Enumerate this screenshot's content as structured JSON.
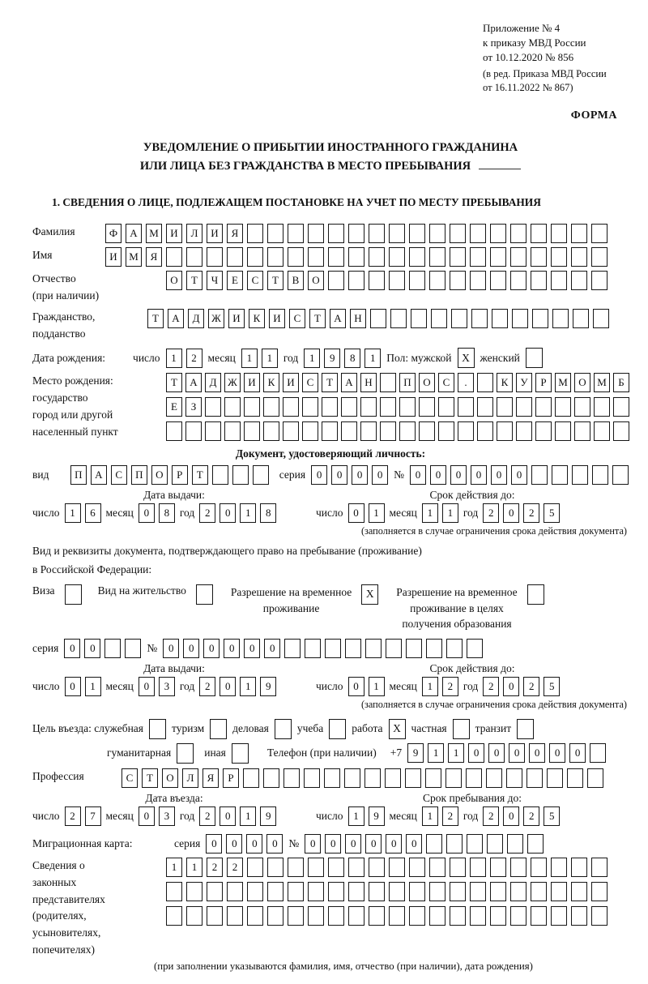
{
  "header": {
    "annex": [
      "Приложение № 4",
      "к приказу МВД России",
      "от 10.12.2020 № 856"
    ],
    "note": [
      "(в ред. Приказа МВД России",
      "от 16.11.2022 № 867)"
    ],
    "form_label": "ФОРМА"
  },
  "title": {
    "line1": "УВЕДОМЛЕНИЕ О ПРИБЫТИИ ИНОСТРАННОГО ГРАЖДАНИНА",
    "line2": "ИЛИ ЛИЦА БЕЗ ГРАЖДАНСТВА В МЕСТО ПРЕБЫВАНИЯ"
  },
  "section1_heading": "1. СВЕДЕНИЯ О ЛИЦЕ, ПОДЛЕЖАЩЕМ ПОСТАНОВКЕ НА УЧЕТ ПО МЕСТУ ПРЕБЫВАНИЯ",
  "labels": {
    "surname": "Фамилия",
    "name": "Имя",
    "patronymic": "Отчество",
    "patronymic2": "(при наличии)",
    "citizenship1": "Гражданство,",
    "citizenship2": "подданство",
    "birth_date": "Дата рождения:",
    "day": "число",
    "month": "месяц",
    "year": "год",
    "sex_male": "Пол: мужской",
    "sex_female": "женский",
    "birthplace1": "Место рождения:",
    "birthplace2": "государство",
    "birthplace3": "город или другой",
    "birthplace4": "населенный пункт",
    "doc_header": "Документ, удостоверяющий личность:",
    "kind": "вид",
    "seria": "серия",
    "number": "№",
    "issue_date": "Дата выдачи:",
    "validity": "Срок действия до:",
    "validity_note": "(заполняется в случае ограничения срока действия документа)",
    "permit_line1": "Вид и реквизиты документа, подтверждающего право на пребывание (проживание)",
    "permit_line2": "в Российской Федерации:",
    "visa": "Виза",
    "residence_permit": "Вид на жительство",
    "rvp_l1": "Разрешение на временное",
    "rvp_l2": "проживание",
    "rvp_edu_l1": "Разрешение на временное",
    "rvp_edu_l2": "проживание в целях",
    "rvp_edu_l3": "получения образования",
    "purpose": "Цель въезда: служебная",
    "tourism": "туризм",
    "business": "деловая",
    "study": "учеба",
    "work": "работа",
    "private": "частная",
    "transit": "транзит",
    "humanitarian": "гуманитарная",
    "other": "иная",
    "phone": "Телефон (при наличии)",
    "plus7": "+7",
    "profession": "Профессия",
    "entry_date": "Дата въезда:",
    "stay_until": "Срок пребывания до:",
    "migcard": "Миграционная карта:",
    "legal_l1": "Сведения о",
    "legal_l2": "законных",
    "legal_l3": "представителях",
    "legal_l4": "(родителях,",
    "legal_l5": "усыновителях,",
    "legal_l6": "попечителях)",
    "legal_note": "(при заполнении указываются фамилия, имя, отчество (при наличии), дата рождения)"
  },
  "fields": {
    "surname": {
      "text": "ФАМИЛИЯ",
      "count": 25
    },
    "name": {
      "text": "ИМЯ",
      "count": 25
    },
    "patronymic": {
      "text": "ОТЧЕСТВО",
      "count": 22
    },
    "citizenship": {
      "text": "ТАДЖИКИСТАН",
      "count": 23
    },
    "birthplace_row1": {
      "text": "ТАДЖИКИСТАН ПОС. КУРМОМБ",
      "count": 24
    },
    "birthplace_row2": {
      "text": "ЕЗ",
      "count": 24
    },
    "birthplace_row3": {
      "text": "",
      "count": 24
    },
    "birth_day": {
      "text": "12",
      "count": 2
    },
    "birth_month": {
      "text": "11",
      "count": 2
    },
    "birth_year": {
      "text": "1981",
      "count": 4
    },
    "doc_kind": {
      "text": "ПАСПОРТ",
      "count": 10
    },
    "doc_seria": {
      "text": "0000",
      "count": 4
    },
    "doc_number": {
      "text": "000000",
      "count": 11
    },
    "doc_issue": {
      "day": {
        "text": "16",
        "count": 2
      },
      "month": {
        "text": "08",
        "count": 2
      },
      "year": {
        "text": "2018",
        "count": 4
      }
    },
    "doc_expiry": {
      "day": {
        "text": "01",
        "count": 2
      },
      "month": {
        "text": "11",
        "count": 2
      },
      "year": {
        "text": "2025",
        "count": 4
      }
    },
    "permit_seria": {
      "text": "00",
      "count": 4
    },
    "permit_number": {
      "text": "000000",
      "count": 16
    },
    "permit_issue": {
      "day": {
        "text": "01",
        "count": 2
      },
      "month": {
        "text": "03",
        "count": 2
      },
      "year": {
        "text": "2019",
        "count": 4
      }
    },
    "permit_expiry": {
      "day": {
        "text": "01",
        "count": 2
      },
      "month": {
        "text": "12",
        "count": 2
      },
      "year": {
        "text": "2025",
        "count": 4
      }
    },
    "phone": {
      "text": "911000000",
      "count": 10
    },
    "profession": {
      "text": "СТОЛЯР",
      "count": 24
    },
    "entry": {
      "day": {
        "text": "27",
        "count": 2
      },
      "month": {
        "text": "03",
        "count": 2
      },
      "year": {
        "text": "2019",
        "count": 4
      }
    },
    "stay": {
      "day": {
        "text": "19",
        "count": 2
      },
      "month": {
        "text": "12",
        "count": 2
      },
      "year": {
        "text": "2025",
        "count": 4
      }
    },
    "migcard_seria": {
      "text": "0000",
      "count": 4
    },
    "migcard_number": {
      "text": "000000",
      "count": 12
    },
    "legal_row1": {
      "text": "1122",
      "count": 22
    },
    "legal_row2": {
      "text": "",
      "count": 22
    },
    "legal_row3": {
      "text": "",
      "count": 22
    }
  },
  "checkboxes": {
    "male": true,
    "female": false,
    "visa": false,
    "residence_permit": false,
    "temp_residence": true,
    "temp_residence_edu": false,
    "official": false,
    "tourism": false,
    "business": false,
    "study": false,
    "work": true,
    "private": false,
    "transit": false,
    "humanitarian": false,
    "other": false
  }
}
